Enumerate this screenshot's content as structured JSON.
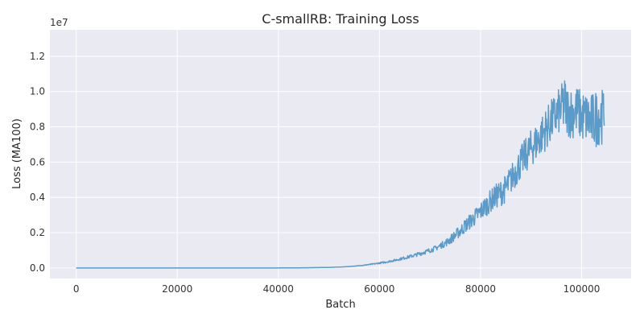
{
  "chart_data": {
    "type": "line",
    "title": "C-smallRB: Training Loss",
    "xlabel": "Batch",
    "ylabel": "Loss (MA100)",
    "y_offset_label": "1e7",
    "xlim": [
      -5200,
      109800
    ],
    "ylim": [
      -600000,
      13500000
    ],
    "x_ticks": [
      0,
      20000,
      40000,
      60000,
      80000,
      100000
    ],
    "x_tick_labels": [
      "0",
      "20000",
      "40000",
      "60000",
      "80000",
      "100000"
    ],
    "y_ticks": [
      0,
      2000000,
      4000000,
      6000000,
      8000000,
      10000000,
      12000000
    ],
    "y_tick_labels": [
      "0.0",
      "0.2",
      "0.4",
      "0.6",
      "0.8",
      "1.0",
      "1.2"
    ],
    "grid": true,
    "background": "#eaeaf2",
    "series": [
      {
        "color": "#5a9bc9",
        "x": [
          0,
          10000,
          20000,
          30000,
          40000,
          45000,
          50000,
          53000,
          55000,
          57000,
          59000,
          61000,
          63000,
          65000,
          67000,
          69000,
          71000,
          72000,
          73000,
          74000,
          75000,
          76000,
          77000,
          78000,
          79000,
          80000,
          81000,
          82000,
          83000,
          84000,
          85000,
          86000,
          87000,
          88000,
          89000,
          90000,
          91000,
          92000,
          93000,
          94000,
          95000,
          96000,
          96500,
          97000,
          98000,
          99000,
          100000,
          101000,
          102000,
          103000,
          103500,
          104000,
          104500
        ],
        "y": [
          0,
          0,
          0,
          0,
          0,
          10000,
          30000,
          60000,
          100000,
          160000,
          230000,
          320000,
          430000,
          570000,
          720000,
          900000,
          1100000,
          1250000,
          1400000,
          1600000,
          1850000,
          2100000,
          2400000,
          2650000,
          2900000,
          3200000,
          3500000,
          3800000,
          4050000,
          4250000,
          4500000,
          5000000,
          5500000,
          6000000,
          6400000,
          6800000,
          7100000,
          7500000,
          7900000,
          8300000,
          8700000,
          9000000,
          9300000,
          9000000,
          8800000,
          8900000,
          8600000,
          8500000,
          8300000,
          8500000,
          8700000,
          8600000,
          8800000
        ],
        "noise_amplitude": [
          0,
          0,
          0,
          0,
          0,
          0,
          0,
          0,
          0,
          20000,
          30000,
          50000,
          60000,
          80000,
          100000,
          120000,
          150000,
          170000,
          200000,
          250000,
          300000,
          350000,
          400000,
          450000,
          500000,
          550000,
          600000,
          650000,
          700000,
          750000,
          800000,
          850000,
          900000,
          950000,
          1000000,
          1050000,
          1100000,
          1150000,
          1200000,
          1250000,
          1300000,
          1350000,
          1800000,
          1500000,
          1500000,
          1500000,
          1500000,
          1500000,
          1600000,
          1700000,
          1700000,
          1600000,
          1200000
        ]
      }
    ]
  }
}
